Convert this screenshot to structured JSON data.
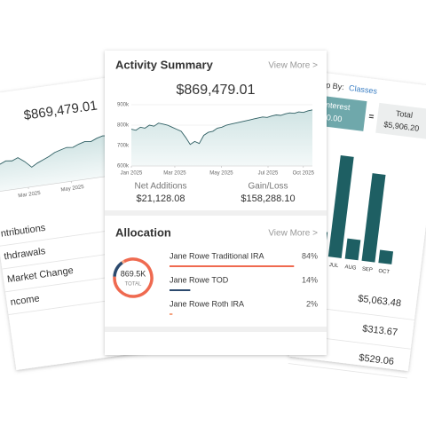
{
  "left_card": {
    "balance": "$869,479.01",
    "chart": {
      "type": "line",
      "values": [
        760000,
        770000,
        765000,
        780000,
        775000,
        790000,
        760000,
        720000,
        740000,
        755000,
        770000,
        790000,
        800000,
        810000,
        805000,
        820000,
        830000,
        825000,
        840000,
        850000,
        845000
      ],
      "xlim": [
        0,
        20
      ],
      "ylim": [
        600000,
        900000
      ],
      "xticks": [
        {
          "value": 6,
          "label": "Mar 2025"
        },
        {
          "value": 13,
          "label": "May 2025"
        }
      ]
    },
    "rows": [
      "ntributions",
      "thdrawals",
      "Market Change",
      "ncome"
    ]
  },
  "center_card": {
    "activity": {
      "title": "Activity Summary",
      "view_more": "View More >",
      "balance": "$869,479.01",
      "chart": {
        "type": "line",
        "values": [
          780000,
          775000,
          790000,
          785000,
          800000,
          795000,
          810000,
          805000,
          800000,
          790000,
          780000,
          770000,
          740000,
          705000,
          720000,
          710000,
          750000,
          765000,
          770000,
          785000,
          790000,
          800000,
          805000,
          810000,
          815000,
          820000,
          825000,
          830000,
          835000,
          840000,
          838000,
          845000,
          850000,
          848000,
          855000,
          860000,
          858000,
          865000,
          862000,
          870000,
          875000
        ],
        "xlim": [
          0,
          40
        ],
        "ylim": [
          600000,
          900000
        ],
        "yticks": [
          {
            "value": 600000,
            "label": "600k"
          },
          {
            "value": 700000,
            "label": "700k"
          },
          {
            "value": 800000,
            "label": "800k"
          },
          {
            "value": 900000,
            "label": "900k"
          }
        ],
        "xticks": [
          {
            "value": 0,
            "label": "Jan 2025"
          },
          {
            "value": 9.6,
            "label": "Mar 2025"
          },
          {
            "value": 19.9,
            "label": "May 2025"
          },
          {
            "value": 30.2,
            "label": "Jul 2025"
          },
          {
            "value": 38,
            "label": "Oct 2025"
          }
        ]
      },
      "stats": [
        {
          "label": "Net Additions",
          "value": "$21,128.08"
        },
        {
          "label": "Gain/Loss",
          "value": "$158,288.10"
        }
      ]
    },
    "allocation": {
      "title": "Allocation",
      "view_more": "View More >",
      "total": "869.5K",
      "total_label": "TOTAL",
      "items": [
        {
          "name": "Jane Rowe Traditional IRA",
          "value": 84,
          "value_label": "84%",
          "color": "#ef6a50"
        },
        {
          "name": "Jane Rowe TOD",
          "value": 14,
          "value_label": "14%",
          "color": "#2c4a6e"
        },
        {
          "name": "Jane Rowe Roth IRA",
          "value": 2,
          "value_label": "2%",
          "color": "#f5a27e"
        }
      ]
    }
  },
  "right_card": {
    "group_by_label": "p By:",
    "group_by_value": "Classes",
    "interest_label": "Interest",
    "interest_value": "$0.00",
    "equals": "=",
    "total_label": "Total",
    "total_value": "$5,906.20",
    "chart": {
      "type": "bar",
      "categories": [
        null,
        "JUN",
        "JUL",
        "AUG",
        "SEP",
        "OCT"
      ],
      "values": [
        24,
        26,
        110,
        22,
        95,
        14
      ],
      "color": "#1e5f63"
    },
    "amounts": [
      "$5,063.48",
      "$313.67",
      "$529.06"
    ]
  }
}
